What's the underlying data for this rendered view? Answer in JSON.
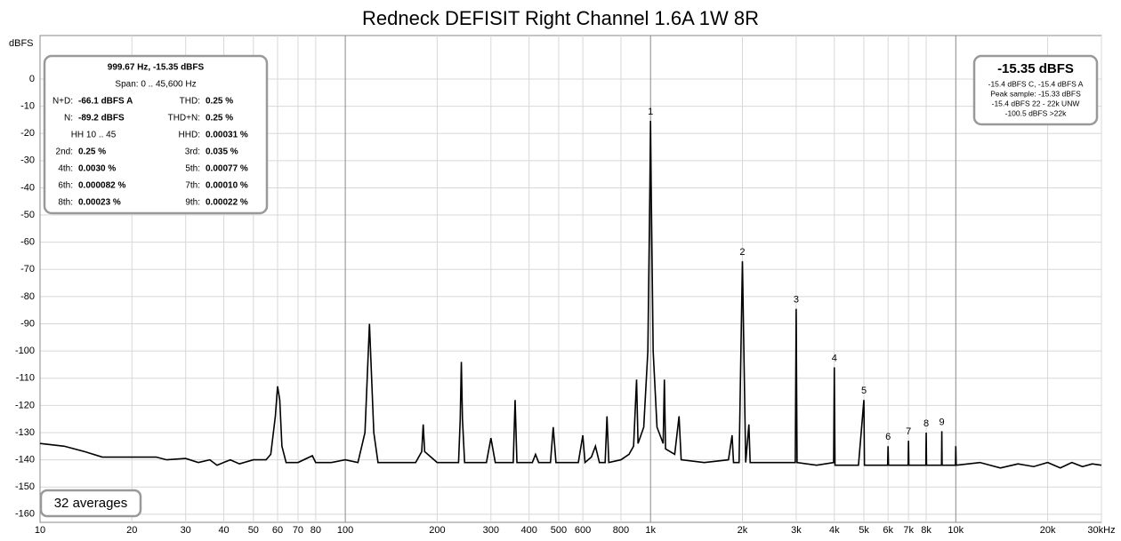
{
  "chart_data": {
    "type": "line",
    "title": "Redneck DEFISIT Right Channel 1.6A 1W 8R",
    "y_label": "dBFS",
    "x_log": true,
    "grid": true,
    "color": "#000000",
    "xlim": [
      10,
      30000
    ],
    "ylim": [
      -163,
      16
    ],
    "xticks": [
      10,
      20,
      30,
      40,
      50,
      60,
      70,
      80,
      100,
      200,
      300,
      400,
      500,
      600,
      800,
      {
        "value": 1000,
        "label": "1k"
      },
      {
        "value": 2000,
        "label": "2k"
      },
      {
        "value": 3000,
        "label": "3k"
      },
      {
        "value": 4000,
        "label": "4k"
      },
      {
        "value": 5000,
        "label": "5k"
      },
      {
        "value": 6000,
        "label": "6k"
      },
      {
        "value": 7000,
        "label": "7k"
      },
      {
        "value": 8000,
        "label": "8k"
      },
      {
        "value": 10000,
        "label": "10k"
      },
      {
        "value": 20000,
        "label": "20k"
      },
      {
        "value": 30000,
        "label": "30kHz"
      }
    ],
    "yticks": [
      0,
      -10,
      -20,
      -30,
      -40,
      -50,
      -60,
      -70,
      -80,
      -90,
      -100,
      -110,
      -120,
      -130,
      -140,
      -150,
      -160
    ],
    "x": [
      10,
      12,
      14,
      16,
      20,
      24,
      26,
      30,
      33,
      36,
      38,
      42,
      45,
      50,
      55,
      57,
      59,
      60,
      61,
      62,
      64,
      70,
      78,
      80,
      90,
      100,
      110,
      116,
      120,
      124,
      128,
      150,
      170,
      178,
      180,
      182,
      200,
      235,
      238,
      240,
      242,
      246,
      290,
      300,
      310,
      355,
      360,
      365,
      410,
      420,
      430,
      470,
      480,
      490,
      580,
      600,
      610,
      640,
      660,
      680,
      710,
      720,
      730,
      800,
      850,
      880,
      900,
      910,
      950,
      980,
      995,
      1000,
      1005,
      1020,
      1050,
      1100,
      1110,
      1120,
      1200,
      1240,
      1260,
      1500,
      1800,
      1850,
      1870,
      1950,
      2000,
      2050,
      2100,
      2120,
      2500,
      2980,
      3000,
      3020,
      3500,
      3980,
      4000,
      4020,
      4800,
      5000,
      5020,
      5980,
      6000,
      6020,
      6980,
      7000,
      7020,
      7980,
      8000,
      8020,
      8980,
      9000,
      9020,
      9980,
      10000,
      10030,
      12000,
      14000,
      16000,
      18000,
      20000,
      22000,
      24000,
      26000,
      28000,
      30000
    ],
    "values": [
      -134,
      -135,
      -137,
      -139,
      -139,
      -139,
      -140,
      -139.5,
      -141,
      -140,
      -142,
      -140,
      -141.5,
      -140,
      -140,
      -138,
      -124,
      -113,
      -118,
      -135,
      -141,
      -141,
      -138.5,
      -141,
      -141,
      -140,
      -141,
      -130,
      -90,
      -130,
      -141,
      -141,
      -141,
      -137,
      -127,
      -137,
      -141,
      -141,
      -125,
      -104,
      -125,
      -141,
      -141,
      -132,
      -141,
      -141,
      -118,
      -141,
      -141,
      -138,
      -141,
      -141,
      -128,
      -141,
      -141,
      -131,
      -141,
      -139,
      -135,
      -141,
      -141,
      -124,
      -141,
      -140,
      -138,
      -135,
      -110.5,
      -134,
      -128,
      -100,
      -40,
      -15.35,
      -40,
      -100,
      -128,
      -134,
      -110.5,
      -136,
      -138,
      -124,
      -140,
      -141,
      -140,
      -131,
      -141,
      -141,
      -67,
      -141,
      -127,
      -141,
      -141,
      -141,
      -84.5,
      -141,
      -142,
      -141,
      -106,
      -142,
      -142,
      -118,
      -142,
      -142,
      -135,
      -142,
      -142,
      -133,
      -142,
      -142,
      -130,
      -142,
      -142,
      -129.5,
      -142,
      -142,
      -135,
      -142,
      -141,
      -143,
      -141.5,
      -142.5,
      -141,
      -143,
      -141,
      -142.5,
      -141.5,
      -142
    ],
    "peak_labels": [
      {
        "label": "1",
        "x": 1000,
        "y": -15.35
      },
      {
        "label": "2",
        "x": 2000,
        "y": -67
      },
      {
        "label": "3",
        "x": 3000,
        "y": -84.5
      },
      {
        "label": "4",
        "x": 4000,
        "y": -106
      },
      {
        "label": "5",
        "x": 5000,
        "y": -118
      },
      {
        "label": "6",
        "x": 6000,
        "y": -135
      },
      {
        "label": "7",
        "x": 7000,
        "y": -133
      },
      {
        "label": "8",
        "x": 8000,
        "y": -130
      },
      {
        "label": "9",
        "x": 9000,
        "y": -129.5
      }
    ],
    "info_box": {
      "header": "999.67 Hz, -15.35 dBFS",
      "span": "Span: 0 .. 45,600 Hz",
      "rows": [
        [
          {
            "label": "N+D:",
            "value": "-66.1 dBFS A"
          },
          {
            "label": "THD:",
            "value": "0.25 %"
          }
        ],
        [
          {
            "label": "N:",
            "value": "-89.2 dBFS"
          },
          {
            "label": "THD+N:",
            "value": "0.25 %"
          }
        ],
        [
          {
            "label": "HH 10 .. 45"
          },
          {
            "label": "HHD:",
            "value": "0.00031 %"
          }
        ],
        [
          {
            "label": "2nd:",
            "value": "0.25 %"
          },
          {
            "label": "3rd:",
            "value": "0.035 %"
          }
        ],
        [
          {
            "label": "4th:",
            "value": "0.0030 %"
          },
          {
            "label": "5th:",
            "value": "0.00077 %"
          }
        ],
        [
          {
            "label": "6th:",
            "value": "0.000082 %"
          },
          {
            "label": "7th:",
            "value": "0.00010 %"
          }
        ],
        [
          {
            "label": "8th:",
            "value": "0.00023 %"
          },
          {
            "label": "9th:",
            "value": "0.00022 %"
          }
        ]
      ]
    },
    "readout": {
      "main": "-15.35 dBFS",
      "lines": [
        "-15.4 dBFS C, -15.4 dBFS A",
        "Peak sample: -15.33 dBFS",
        "-15.4 dBFS 22 - 22k UNW",
        "-100.5 dBFS >22k"
      ]
    },
    "averages": "32 averages"
  }
}
